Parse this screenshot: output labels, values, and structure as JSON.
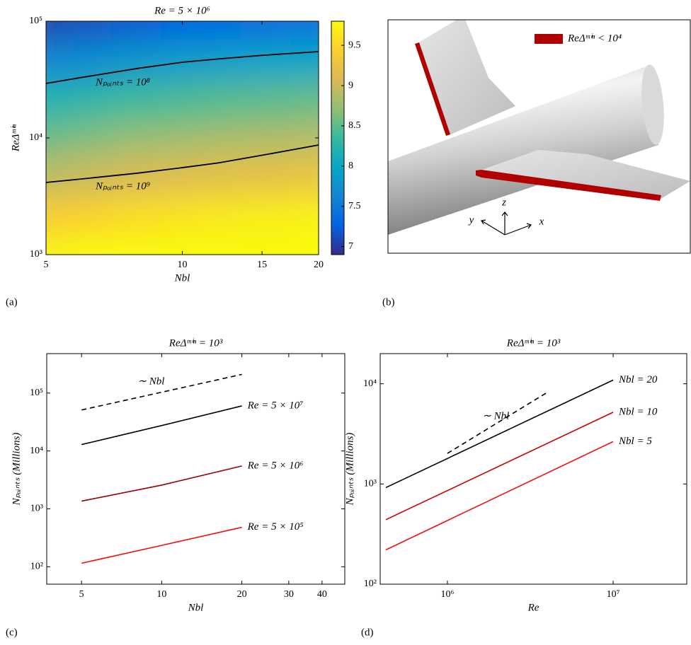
{
  "chart_data": [
    {
      "type": "heatmap",
      "panel_label": "(a)",
      "title": "Re = 5 × 10⁶",
      "x_label": "Nbl",
      "y_label": "ReΔᵐⁱⁿ",
      "xscale": "log",
      "yscale": "log",
      "xlim": [
        5,
        20
      ],
      "ylim": [
        1000,
        100000
      ],
      "xticks": [
        5,
        10,
        15,
        20
      ],
      "yticks": [
        {
          "value": 1000,
          "label": "10³"
        },
        {
          "value": 10000,
          "label": "10⁴"
        },
        {
          "value": 100000,
          "label": "10⁵"
        }
      ],
      "x": [
        5,
        6,
        8,
        10,
        12,
        15,
        20
      ],
      "y": [
        1000,
        2000,
        5000,
        10000,
        20000,
        50000,
        100000
      ],
      "z": [
        [
          9.76,
          9.84,
          9.93,
          9.98,
          10.02,
          10.05,
          10.09
        ],
        [
          9.4,
          9.47,
          9.57,
          9.62,
          9.66,
          9.69,
          9.73
        ],
        [
          8.92,
          9.0,
          9.09,
          9.14,
          9.18,
          9.21,
          9.25
        ],
        [
          8.56,
          8.64,
          8.73,
          8.78,
          8.82,
          8.85,
          8.89
        ],
        [
          8.2,
          8.27,
          8.37,
          8.42,
          8.46,
          8.49,
          8.53
        ],
        [
          7.62,
          7.7,
          7.8,
          7.86,
          7.9,
          7.94,
          7.98
        ],
        [
          7.05,
          7.12,
          7.2,
          7.26,
          7.3,
          7.34,
          7.38
        ]
      ],
      "colormap": "parula",
      "clim": [
        6.9,
        9.8
      ],
      "colorbar_ticks": [
        7,
        7.5,
        8,
        8.5,
        9,
        9.5
      ],
      "contours": [
        {
          "label": "Nₚₒᵢₙₜₛ = 10⁸",
          "color": "#000000",
          "x": [
            5,
            6,
            8,
            10,
            12,
            15,
            20
          ],
          "y": [
            29300,
            33000,
            39500,
            44500,
            47500,
            51000,
            54900
          ]
        },
        {
          "label": "Nₚₒᵢₙₜₛ = 10⁹",
          "color": "#000000",
          "x": [
            5,
            6,
            8,
            10,
            12,
            15,
            20
          ],
          "y": [
            4150,
            4450,
            5000,
            5560,
            6100,
            7100,
            8700
          ]
        }
      ]
    },
    {
      "type": "image",
      "panel_label": "(b)",
      "legend": {
        "label": "ReΔᵐⁱⁿ < 10⁴",
        "color": "#b00000"
      },
      "axis_labels": [
        "y",
        "z",
        "x"
      ]
    },
    {
      "type": "line",
      "panel_label": "(c)",
      "title": "ReΔᵐⁱⁿ = 10³",
      "x_label": "Nbl",
      "y_label": "Nₚₒᵢₙₜₛ (Millions)",
      "xscale": "log",
      "yscale": "log",
      "xlim": [
        3.7,
        48.7
      ],
      "ylim": [
        50,
        480000
      ],
      "xticks": [
        5,
        10,
        20,
        30,
        40
      ],
      "yticks": [
        {
          "value": 100,
          "label": "10²"
        },
        {
          "value": 1000,
          "label": "10³"
        },
        {
          "value": 10000,
          "label": "10⁴"
        },
        {
          "value": 100000,
          "label": "10⁵"
        }
      ],
      "series": [
        {
          "name": "Re = 5 × 10⁷",
          "color": "#000000",
          "x": [
            5,
            10,
            20
          ],
          "values": [
            12900,
            27500,
            60000
          ]
        },
        {
          "name": "Re = 5 × 10⁶",
          "color": "#990000",
          "x": [
            5,
            10,
            20
          ],
          "values": [
            1360,
            2570,
            5500
          ]
        },
        {
          "name": "Re = 5 × 10⁵",
          "color": "#ee1111",
          "x": [
            5,
            10,
            20
          ],
          "values": [
            115,
            234,
            480
          ]
        },
        {
          "name": "∼ Nbl",
          "color": "#000000",
          "dashed": true,
          "x": [
            5,
            20
          ],
          "values": [
            51000,
            210000
          ]
        }
      ]
    },
    {
      "type": "line",
      "panel_label": "(d)",
      "title": "ReΔᵐⁱⁿ = 10³",
      "x_label": "Re",
      "y_label": "Nₚₒᵢₙₜₛ (Millions)",
      "xscale": "log",
      "yscale": "log",
      "xlim": [
        393000,
        27800000
      ],
      "ylim": [
        100,
        20000
      ],
      "xticks": [
        {
          "value": 1000000,
          "label": "10⁶"
        },
        {
          "value": 10000000,
          "label": "10⁷"
        }
      ],
      "yticks": [
        {
          "value": 100,
          "label": "10²"
        },
        {
          "value": 1000,
          "label": "10³"
        },
        {
          "value": 10000,
          "label": "10⁴"
        }
      ],
      "series": [
        {
          "name": "Nbl = 20",
          "color": "#000000",
          "x": [
            425000,
            10000000
          ],
          "values": [
            920,
            10900
          ]
        },
        {
          "name": "Nbl = 10",
          "color": "#cc0000",
          "x": [
            425000,
            10000000
          ],
          "values": [
            440,
            5200
          ]
        },
        {
          "name": "Nbl = 5",
          "color": "#ee1111",
          "x": [
            425000,
            10000000
          ],
          "values": [
            220,
            2650
          ]
        },
        {
          "name": "∼ Nbl",
          "color": "#000000",
          "dashed": true,
          "x": [
            1000000,
            4000000
          ],
          "values": [
            2020,
            8200
          ]
        }
      ]
    }
  ]
}
